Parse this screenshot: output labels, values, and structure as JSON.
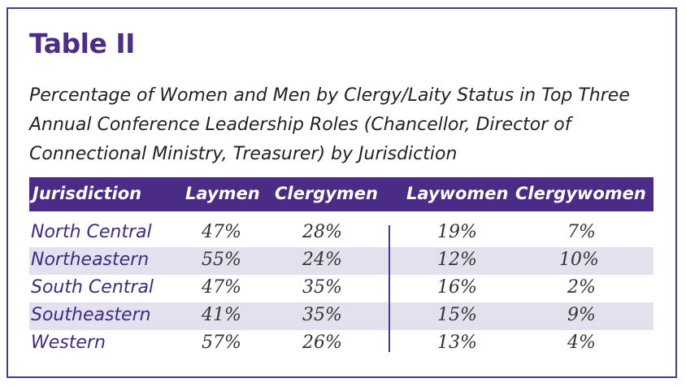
{
  "title": "Table II",
  "subtitle": "Percentage of Women and Men by Clergy/Laity Status in Top Three Annual Conference Leadership Roles (Chancellor, Director of Connectional Ministry, Treasurer) by Jurisdiction",
  "colors": {
    "accent": "#4a2c87",
    "row_shade": "#e4e1ef",
    "jurisdiction_text": "#3f2a85"
  },
  "table": {
    "headers": [
      "Jurisdiction",
      "Laymen",
      "Clergymen",
      "Laywomen",
      "Clergywomen"
    ],
    "rows": [
      [
        "North Central",
        "47%",
        "28%",
        "19%",
        "7%"
      ],
      [
        "Northeastern",
        "55%",
        "24%",
        "12%",
        "10%"
      ],
      [
        "South Central",
        "47%",
        "35%",
        "16%",
        "2%"
      ],
      [
        "Southeastern",
        "41%",
        "35%",
        "15%",
        "9%"
      ],
      [
        "Western",
        "57%",
        "26%",
        "13%",
        "4%"
      ]
    ]
  }
}
